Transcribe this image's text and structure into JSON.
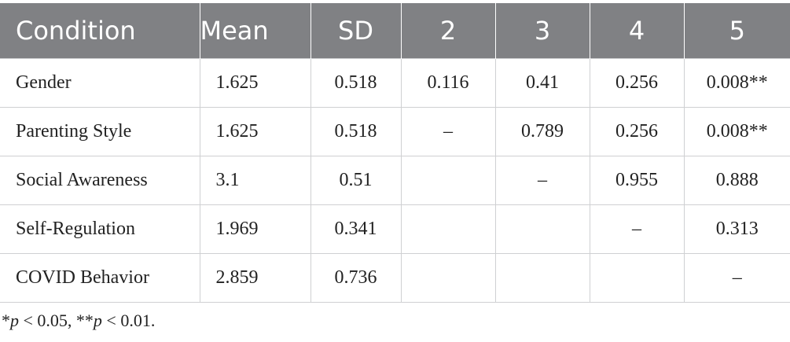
{
  "table": {
    "columns": [
      "Condition",
      "Mean",
      "SD",
      "2",
      "3",
      "4",
      "5"
    ],
    "rows": [
      [
        "Gender",
        "1.625",
        "0.518",
        "0.116",
        "0.41",
        "0.256",
        "0.008**"
      ],
      [
        "Parenting Style",
        "1.625",
        "0.518",
        "–",
        "0.789",
        "0.256",
        "0.008**"
      ],
      [
        "Social Awareness",
        "3.1",
        "0.51",
        null,
        "–",
        "0.955",
        "0.888"
      ],
      [
        "Self-Regulation",
        "1.969",
        "0.341",
        null,
        null,
        "–",
        "0.313"
      ],
      [
        "COVID Behavior",
        "2.859",
        "0.736",
        null,
        null,
        null,
        "–"
      ]
    ]
  },
  "footnote": [
    "*",
    "p",
    " < 0.05, **",
    "p",
    " < 0.01."
  ]
}
